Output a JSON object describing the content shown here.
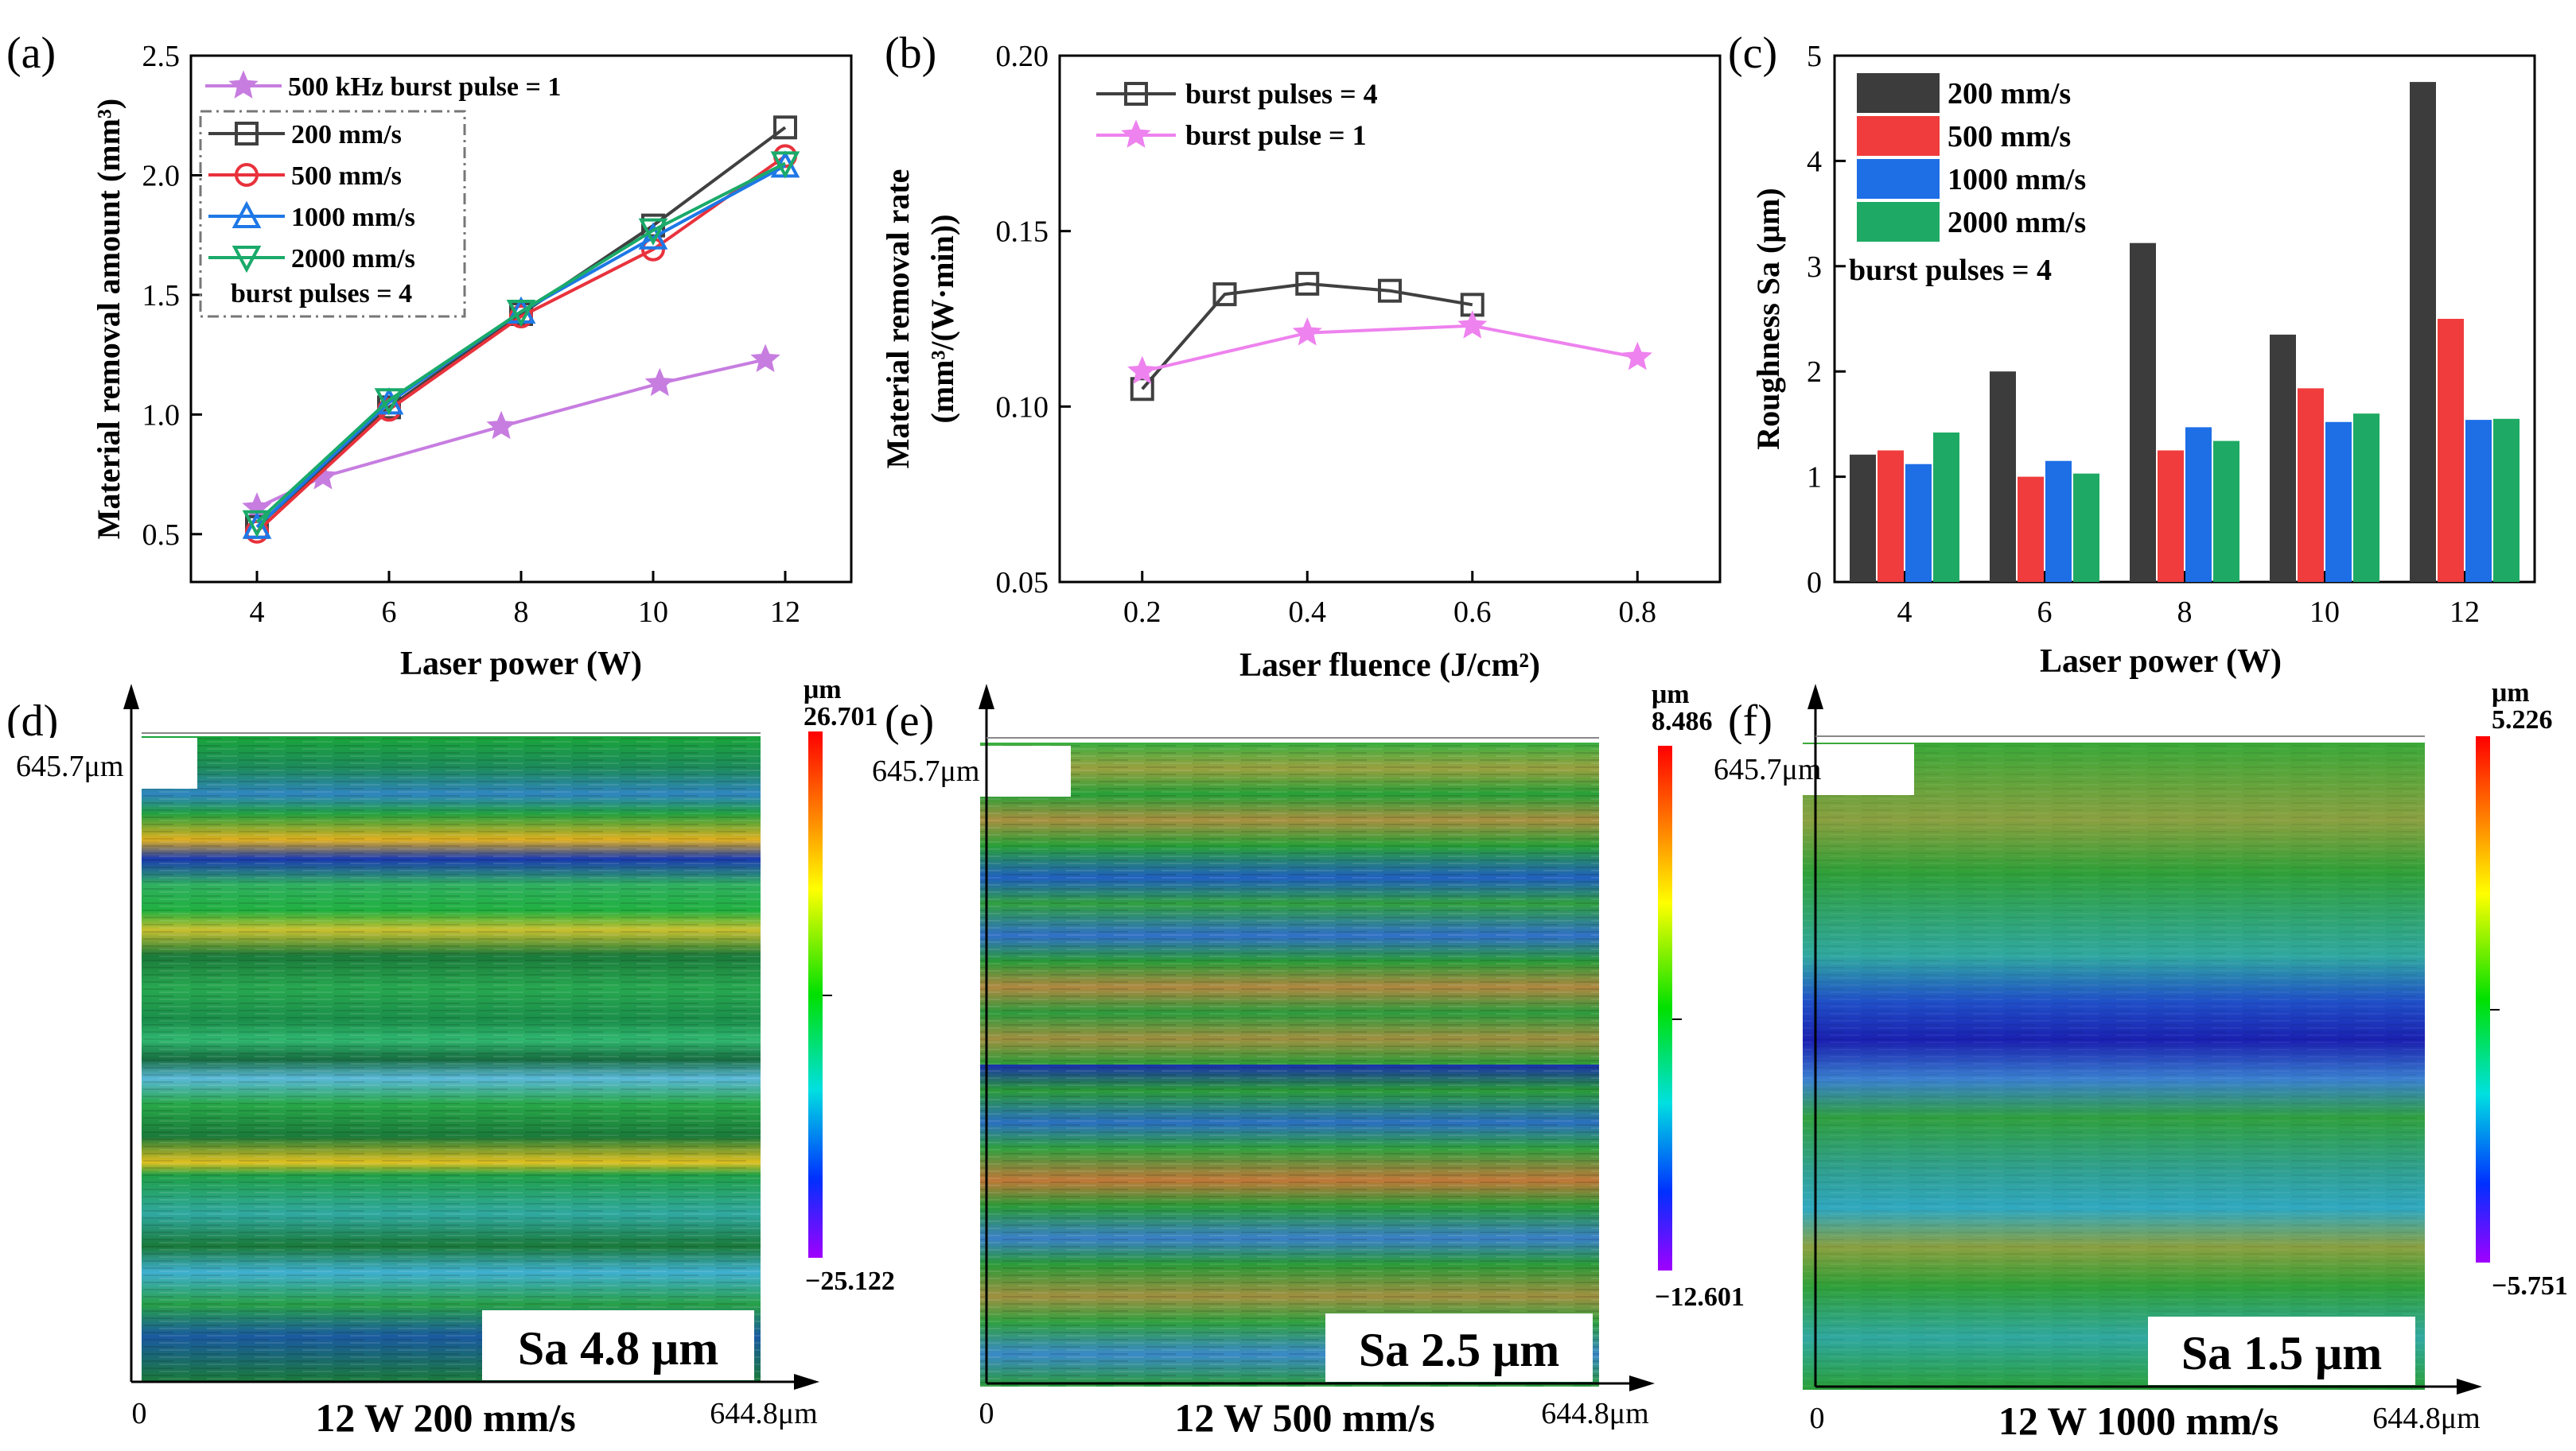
{
  "panels": {
    "a": {
      "letter": "(a)"
    },
    "b": {
      "letter": "(b)"
    },
    "c": {
      "letter": "(c)"
    },
    "d": {
      "letter": "(d)"
    },
    "e": {
      "letter": "(e)"
    },
    "f": {
      "letter": "(f)"
    }
  },
  "chart_data": [
    {
      "id": "a",
      "type": "line",
      "title": "",
      "xlabel": "Laser power (W)",
      "ylabel": "Material removal amount  (mm³)",
      "xlim": [
        3,
        13
      ],
      "ylim": [
        0.3,
        2.5
      ],
      "xticks": [
        4,
        6,
        8,
        10,
        12
      ],
      "yticks": [
        0.5,
        1.0,
        1.5,
        2.0,
        2.5
      ],
      "ytick_labels": [
        "0.5",
        "1.0",
        "1.5",
        "2.0",
        "2.5"
      ],
      "legend_note": "burst pulses = 4",
      "series": [
        {
          "name": "500 kHz burst pulse = 1",
          "color": "#C77DE0",
          "marker": "star",
          "x": [
            4,
            5,
            7.7,
            10.1,
            11.7
          ],
          "y": [
            0.61,
            0.74,
            0.95,
            1.13,
            1.23
          ]
        },
        {
          "name": "200 mm/s",
          "color": "#404040",
          "marker": "square",
          "x": [
            4,
            6,
            8,
            10,
            12
          ],
          "y": [
            0.53,
            1.03,
            1.42,
            1.79,
            2.2
          ]
        },
        {
          "name": "500 mm/s",
          "color": "#E8323C",
          "marker": "circle",
          "x": [
            4,
            6,
            8,
            10,
            12
          ],
          "y": [
            0.51,
            1.02,
            1.41,
            1.69,
            2.08
          ]
        },
        {
          "name": "1000 mm/s",
          "color": "#1E78E6",
          "marker": "triangle-up",
          "x": [
            4,
            6,
            8,
            10,
            12
          ],
          "y": [
            0.53,
            1.05,
            1.43,
            1.74,
            2.04
          ]
        },
        {
          "name": "2000 mm/s",
          "color": "#1AAA6A",
          "marker": "triangle-down",
          "x": [
            4,
            6,
            8,
            10,
            12
          ],
          "y": [
            0.55,
            1.06,
            1.43,
            1.77,
            2.05
          ]
        }
      ]
    },
    {
      "id": "b",
      "type": "line",
      "title": "",
      "xlabel": "Laser fluence (J/cm²)",
      "ylabel_line1": "Material removal rate",
      "ylabel_line2": "(mm³/(W·min))",
      "xlim": [
        0.1,
        0.9
      ],
      "ylim": [
        0.05,
        0.2
      ],
      "xticks": [
        0.2,
        0.4,
        0.6,
        0.8
      ],
      "xtick_labels": [
        "0.2",
        "0.4",
        "0.6",
        "0.8"
      ],
      "yticks": [
        0.05,
        0.1,
        0.15,
        0.2
      ],
      "ytick_labels": [
        "0.05",
        "0.10",
        "0.15",
        "0.20"
      ],
      "series": [
        {
          "name": "burst pulses = 4",
          "color": "#404040",
          "marker": "square",
          "x": [
            0.2,
            0.3,
            0.4,
            0.5,
            0.6
          ],
          "y": [
            0.105,
            0.132,
            0.135,
            0.133,
            0.129
          ]
        },
        {
          "name": "burst pulse = 1",
          "color": "#EE82EE",
          "marker": "star",
          "x": [
            0.2,
            0.4,
            0.6,
            0.8
          ],
          "y": [
            0.11,
            0.121,
            0.123,
            0.114
          ]
        }
      ]
    },
    {
      "id": "c",
      "type": "bar",
      "title": "",
      "xlabel": "Laser power (W)",
      "ylabel": "Roughness Sa (μm)",
      "categories": [
        "4",
        "6",
        "8",
        "10",
        "12"
      ],
      "ylim": [
        0,
        5
      ],
      "yticks": [
        0,
        1,
        2,
        3,
        4,
        5
      ],
      "legend_note": "burst pulses = 4",
      "series": [
        {
          "name": "200 mm/s",
          "color": "#3C3C3C",
          "values": [
            1.21,
            2.0,
            3.22,
            2.35,
            4.75
          ]
        },
        {
          "name": "500 mm/s",
          "color": "#F03C3C",
          "values": [
            1.25,
            1.0,
            1.25,
            1.84,
            2.5
          ]
        },
        {
          "name": "1000 mm/s",
          "color": "#1E6EE6",
          "values": [
            1.12,
            1.15,
            1.47,
            1.52,
            1.54
          ]
        },
        {
          "name": "2000 mm/s",
          "color": "#1EAA64",
          "values": [
            1.42,
            1.03,
            1.34,
            1.6,
            1.55
          ]
        }
      ]
    }
  ],
  "maps": [
    {
      "id": "d",
      "y_top_label": "645.7μm",
      "x_zero": "0",
      "x_end_label": "644.8μm",
      "caption": "12 W  200 mm/s",
      "sa_label": "Sa 4.8 μm",
      "scale_unit": "μm",
      "scale_max": "26.701",
      "scale_min": "−25.122"
    },
    {
      "id": "e",
      "y_top_label": "645.7μm",
      "x_zero": "0",
      "x_end_label": "644.8μm",
      "caption": "12 W  500 mm/s",
      "sa_label": "Sa 2.5 μm",
      "scale_unit": "μm",
      "scale_max": "8.486",
      "scale_min": "−12.601"
    },
    {
      "id": "f",
      "y_top_label": "645.7μm",
      "x_zero": "0",
      "x_end_label": "644.8μm",
      "caption": "12 W  1000 mm/s",
      "sa_label": "Sa 1.5 μm",
      "scale_unit": "μm",
      "scale_max": "5.226",
      "scale_min": "−5.751"
    }
  ]
}
